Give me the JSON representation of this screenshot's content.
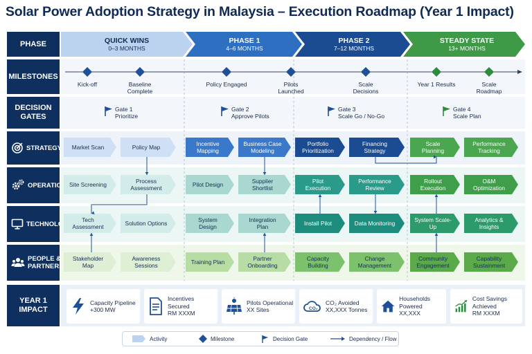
{
  "title": "Solar Power Adoption Strategy in Malaysia – Execution Roadmap (Year 1 Impact)",
  "row_labels": {
    "phase": "PHASE",
    "milestones": "MILESTONES",
    "decision_gates": "DECISION GATES",
    "strategy": "STRATEGY",
    "operations": "OPERATIONS",
    "technology": "TECHNOLOGY",
    "people_partners": "PEOPLE & PARTNERS",
    "impact": "YEAR 1 IMPACT"
  },
  "phases": [
    {
      "name": "QUICK WINS",
      "time": "0–3 MONTHS",
      "color": "#bcd3f0",
      "text_color": "#0f2a55"
    },
    {
      "name": "PHASE 1",
      "time": "4–6 MONTHS",
      "color": "#2f6fc1",
      "text_color": "#ffffff"
    },
    {
      "name": "PHASE 2",
      "time": "7–12 MONTHS",
      "color": "#1b4c92",
      "text_color": "#ffffff"
    },
    {
      "name": "STEADY STATE",
      "time": "13+ MONTHS",
      "color": "#3f9a48",
      "text_color": "#ffffff"
    }
  ],
  "milestones": [
    {
      "label": "Kick-off",
      "color": "#1f4f95"
    },
    {
      "label": "Baseline Complete",
      "color": "#1f4f95"
    },
    {
      "label": "Policy Engaged",
      "color": "#1f4f95"
    },
    {
      "label": "Pilots Launched",
      "color": "#1f4f95"
    },
    {
      "label": "Scale Decisions",
      "color": "#1f4f95"
    },
    {
      "label": "Year 1 Results",
      "color": "#2f8a3e"
    },
    {
      "label": "Scale Roadmap",
      "color": "#2f8a3e"
    }
  ],
  "gates": [
    {
      "name": "Gate 1",
      "desc": "Prioritize",
      "color": "#1f4f95"
    },
    {
      "name": "Gate 2",
      "desc": "Approve Pilots",
      "color": "#1f4f95"
    },
    {
      "name": "Gate 3",
      "desc": "Scale Go / No-Go",
      "color": "#1f4f95"
    },
    {
      "name": "Gate 4",
      "desc": "Scale Plan",
      "color": "#2f8a3e"
    }
  ],
  "lanes": {
    "strategy": [
      "Market Scan",
      "Policy Map",
      "Incentive Mapping",
      "Business Case Modeling",
      "Portfolio Prioritization",
      "Financing Strategy",
      "Scale Planning",
      "Performance Tracking"
    ],
    "operations": [
      "Site Screening",
      "Process Assessment",
      "Pilot Design",
      "Supplier Shortlist",
      "Pilot Execution",
      "Performance Review",
      "Rollout Execution",
      "O&M Optimization"
    ],
    "technology": [
      "Tech Assessment",
      "Solution Options",
      "System Design",
      "Integration Plan",
      "Install Pilot",
      "Data Monitoring",
      "System Scale-Up",
      "Analytics & Insights"
    ],
    "people": [
      "Stakeholder Map",
      "Awareness Sessions",
      "Training Plan",
      "Partner Onboarding",
      "Capacity Building",
      "Change Management",
      "Community Engagement",
      "Capability Sustainment"
    ]
  },
  "lane_colors": {
    "strategy": [
      "#cfe0f5",
      "#cfe0f5",
      "#3a79c9",
      "#3a79c9",
      "#1b4c92",
      "#1b4c92",
      "#4aa64f",
      "#4aa64f"
    ],
    "operations": [
      "#d3ece9",
      "#d3ece9",
      "#a8d8cf",
      "#a8d8cf",
      "#2a9a8a",
      "#2a9a8a",
      "#3e9e49",
      "#3e9e49"
    ],
    "technology": [
      "#d3ece9",
      "#d3ece9",
      "#a8d8cf",
      "#a8d8cf",
      "#1d8c7c",
      "#1d8c7c",
      "#2c9a6b",
      "#2c9a6b"
    ],
    "people": [
      "#deefd6",
      "#deefd6",
      "#b7dca4",
      "#b7dca4",
      "#7cc16b",
      "#7cc16b",
      "#5aaa4a",
      "#5aaa4a"
    ]
  },
  "impacts": [
    {
      "label": "Capacity Pipeline",
      "value": "+300 MW",
      "icon": "lightning-icon"
    },
    {
      "label": "Incentives Secured",
      "value": "RM XXXM",
      "icon": "document-icon"
    },
    {
      "label": "Pilots Operational",
      "value": "XX Sites",
      "icon": "solar-panel-icon"
    },
    {
      "label": "CO₂ Avoided",
      "value": "XX,XXX Tonnes",
      "icon": "co2-cloud-icon"
    },
    {
      "label": "Households Powered",
      "value": "XX,XXX",
      "icon": "house-icon"
    },
    {
      "label": "Cost Savings Achieved",
      "value": "RM XXXM",
      "icon": "growth-chart-icon"
    }
  ],
  "legend": {
    "activity": "Activity",
    "milestone": "Milestone",
    "gate": "Decision Gate",
    "flow": "Dependency / Flow"
  }
}
